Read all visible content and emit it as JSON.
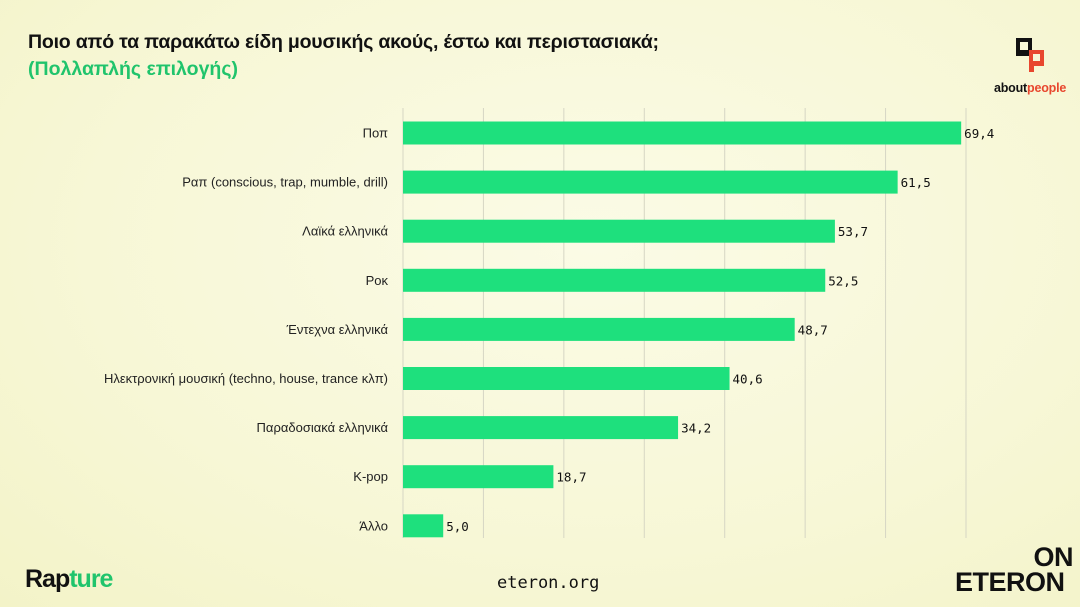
{
  "header": {
    "title": "Ποιο από τα παρακάτω είδη μουσικής ακούς, έστω και περιστασιακά;",
    "subtitle": "(Πολλαπλής επιλογής)"
  },
  "logos": {
    "aboutpeople_prefix": "about",
    "aboutpeople_suffix": "people",
    "rapture_prefix": "Rap",
    "rapture_suffix": "ture",
    "on": "ON",
    "eteron": "ETERON"
  },
  "footer": {
    "url": "eteron.org"
  },
  "colors": {
    "bar": "#1ee07d",
    "accent_green": "#20c46c",
    "accent_red": "#e8472e",
    "grid": "#d6d6c4"
  },
  "chart_data": {
    "type": "bar",
    "orientation": "horizontal",
    "categories": [
      "Ποπ",
      "Ραπ (conscious, trap, mumble, drill)",
      "Λαϊκά ελληνικά",
      "Ροκ",
      "Έντεχνα ελληνικά",
      "Ηλεκτρονική μουσική (techno, house, trance κλπ)",
      "Παραδοσιακά ελληνικά",
      "K-pop",
      "Άλλο"
    ],
    "values": [
      69.4,
      61.5,
      53.7,
      52.5,
      48.7,
      40.6,
      34.2,
      18.7,
      5.0
    ],
    "value_labels": [
      "69,4",
      "61,5",
      "53,7",
      "52,5",
      "48,7",
      "40,6",
      "34,2",
      "18,7",
      "5,0"
    ],
    "xlim": [
      0,
      70
    ],
    "grid_step": 10,
    "grid": true,
    "title": "Ποιο από τα παρακάτω είδη μουσικής ακούς, έστω και περιστασιακά;",
    "xlabel": "",
    "ylabel": ""
  }
}
